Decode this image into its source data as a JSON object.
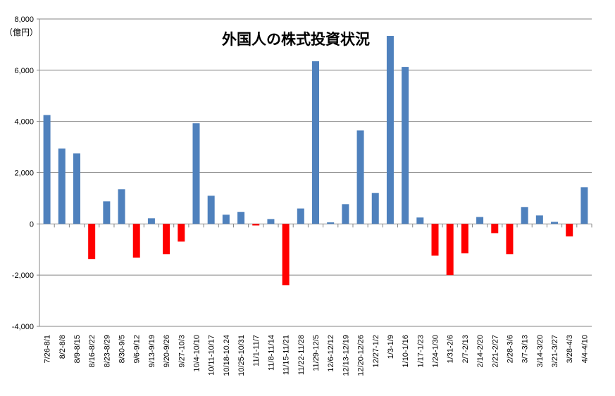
{
  "chart_data": {
    "type": "bar",
    "title": "外国人の株式投資状況",
    "ylabel": "（億円）",
    "xlabel": "",
    "ylim": [
      -4000,
      8000
    ],
    "yticks": [
      "8,000",
      "6,000",
      "4,000",
      "2,000",
      "0",
      "-2,000",
      "-4,000"
    ],
    "grid": true,
    "colors": {
      "positive": "#4f81bd",
      "negative": "#ff0000"
    },
    "categories": [
      "7/26-8/1",
      "8/2-8/8",
      "8/9-8/15",
      "8/16-8/22",
      "8/23-8/29",
      "8/30-9/5",
      "9/6-9/12",
      "9/13-9/19",
      "9/20-9/26",
      "9/27-10/3",
      "10/4-10/10",
      "10/11-10/17",
      "10/18-10.24",
      "10/25-10/31",
      "11/1-11/7",
      "11/8-11/14",
      "11/15-11/21",
      "11/22-11/28",
      "11/29-12/5",
      "12/6-12/12",
      "12/13-12/19",
      "12/20-12/26",
      "12/27-1/2",
      "1/3-1/9",
      "1/10-1/16",
      "1/17-1/23",
      "1/24-1/30",
      "1/31-2/6",
      "2/7-2/13",
      "2/14-2/20",
      "2/21-2/27",
      "2/28-3/6",
      "3/7-3/13",
      "3/14-3/20",
      "3/21-3/27",
      "3/28-4/3",
      "4/4-4/10"
    ],
    "values": [
      4250,
      2940,
      2750,
      -1370,
      880,
      1350,
      -1320,
      220,
      -1180,
      -690,
      3930,
      1100,
      360,
      470,
      -60,
      190,
      -2390,
      600,
      6350,
      60,
      770,
      3650,
      1210,
      7340,
      6130,
      250,
      -1240,
      -2000,
      -1150,
      270,
      -360,
      -1180,
      660,
      330,
      80,
      -490,
      1430
    ]
  }
}
